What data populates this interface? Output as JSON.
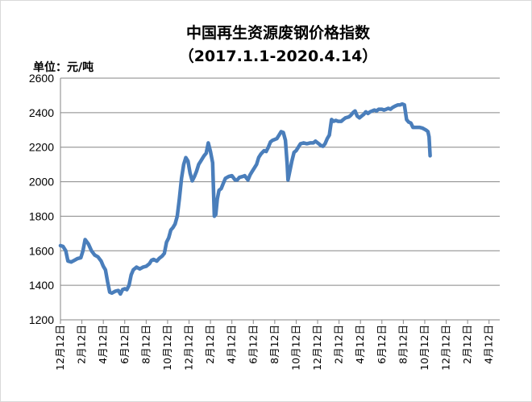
{
  "chart_data": {
    "type": "line",
    "title": "中国再生资源废钢价格指数",
    "subtitle": "（2017.1.1-2020.4.14）",
    "ylabel": "单位：元/吨",
    "xlabel": "",
    "ylim": [
      1200,
      2600
    ],
    "yticks": [
      "2600",
      "2400",
      "2200",
      "2000",
      "1800",
      "1600",
      "1400",
      "1200"
    ],
    "categories": [
      "12月12日",
      "2月12日",
      "4月12日",
      "6月12日",
      "8月12日",
      "10月12日",
      "12月12日",
      "2月12日",
      "4月12日",
      "6月12日",
      "8月12日",
      "10月12日",
      "12月12日",
      "2月12日",
      "4月12日",
      "6月12日",
      "8月12日",
      "10月12日",
      "12月12日",
      "2月12日",
      "4月12日"
    ],
    "grid": true,
    "legend": "none",
    "color": "#4a7ebb",
    "series": [
      {
        "values": [
          [
            0,
            1630
          ],
          [
            0.12,
            1625
          ],
          [
            0.25,
            1600
          ],
          [
            0.35,
            1540
          ],
          [
            0.5,
            1535
          ],
          [
            0.65,
            1545
          ],
          [
            0.8,
            1555
          ],
          [
            0.95,
            1560
          ],
          [
            1.05,
            1600
          ],
          [
            1.15,
            1665
          ],
          [
            1.3,
            1640
          ],
          [
            1.45,
            1600
          ],
          [
            1.6,
            1575
          ],
          [
            1.75,
            1565
          ],
          [
            1.9,
            1540
          ],
          [
            2.0,
            1510
          ],
          [
            2.1,
            1490
          ],
          [
            2.2,
            1420
          ],
          [
            2.3,
            1360
          ],
          [
            2.4,
            1355
          ],
          [
            2.55,
            1365
          ],
          [
            2.7,
            1370
          ],
          [
            2.8,
            1350
          ],
          [
            2.9,
            1375
          ],
          [
            3.0,
            1380
          ],
          [
            3.1,
            1375
          ],
          [
            3.2,
            1400
          ],
          [
            3.3,
            1460
          ],
          [
            3.4,
            1490
          ],
          [
            3.55,
            1505
          ],
          [
            3.7,
            1495
          ],
          [
            3.85,
            1505
          ],
          [
            4.0,
            1510
          ],
          [
            4.15,
            1525
          ],
          [
            4.25,
            1545
          ],
          [
            4.35,
            1550
          ],
          [
            4.5,
            1540
          ],
          [
            4.6,
            1555
          ],
          [
            4.75,
            1570
          ],
          [
            4.85,
            1585
          ],
          [
            4.95,
            1650
          ],
          [
            5.05,
            1675
          ],
          [
            5.15,
            1720
          ],
          [
            5.25,
            1735
          ],
          [
            5.35,
            1755
          ],
          [
            5.45,
            1800
          ],
          [
            5.55,
            1900
          ],
          [
            5.65,
            2020
          ],
          [
            5.75,
            2100
          ],
          [
            5.85,
            2140
          ],
          [
            5.95,
            2120
          ],
          [
            6.05,
            2050
          ],
          [
            6.15,
            2005
          ],
          [
            6.25,
            2030
          ],
          [
            6.35,
            2060
          ],
          [
            6.45,
            2100
          ],
          [
            6.55,
            2120
          ],
          [
            6.7,
            2150
          ],
          [
            6.8,
            2165
          ],
          [
            6.9,
            2225
          ],
          [
            7.0,
            2175
          ],
          [
            7.1,
            2110
          ],
          [
            7.18,
            1800
          ],
          [
            7.25,
            1810
          ],
          [
            7.32,
            1900
          ],
          [
            7.4,
            1950
          ],
          [
            7.5,
            1960
          ],
          [
            7.6,
            1990
          ],
          [
            7.7,
            2020
          ],
          [
            7.85,
            2030
          ],
          [
            8.0,
            2035
          ],
          [
            8.15,
            2010
          ],
          [
            8.25,
            2010
          ],
          [
            8.35,
            2025
          ],
          [
            8.5,
            2030
          ],
          [
            8.6,
            2035
          ],
          [
            8.75,
            2010
          ],
          [
            8.85,
            2040
          ],
          [
            8.95,
            2060
          ],
          [
            9.05,
            2080
          ],
          [
            9.15,
            2100
          ],
          [
            9.25,
            2140
          ],
          [
            9.35,
            2160
          ],
          [
            9.5,
            2180
          ],
          [
            9.6,
            2175
          ],
          [
            9.7,
            2200
          ],
          [
            9.8,
            2230
          ],
          [
            9.9,
            2240
          ],
          [
            10.0,
            2245
          ],
          [
            10.1,
            2250
          ],
          [
            10.2,
            2270
          ],
          [
            10.3,
            2290
          ],
          [
            10.4,
            2285
          ],
          [
            10.5,
            2240
          ],
          [
            10.58,
            2100
          ],
          [
            10.62,
            2010
          ],
          [
            10.7,
            2060
          ],
          [
            10.8,
            2120
          ],
          [
            10.9,
            2170
          ],
          [
            11.0,
            2180
          ],
          [
            11.1,
            2200
          ],
          [
            11.2,
            2220
          ],
          [
            11.35,
            2225
          ],
          [
            11.5,
            2220
          ],
          [
            11.65,
            2225
          ],
          [
            11.8,
            2225
          ],
          [
            11.9,
            2235
          ],
          [
            12.05,
            2220
          ],
          [
            12.15,
            2210
          ],
          [
            12.25,
            2205
          ],
          [
            12.35,
            2220
          ],
          [
            12.45,
            2250
          ],
          [
            12.55,
            2270
          ],
          [
            12.65,
            2360
          ],
          [
            12.75,
            2350
          ],
          [
            12.85,
            2355
          ],
          [
            12.95,
            2350
          ],
          [
            13.1,
            2350
          ],
          [
            13.2,
            2360
          ],
          [
            13.3,
            2370
          ],
          [
            13.45,
            2375
          ],
          [
            13.55,
            2385
          ],
          [
            13.65,
            2400
          ],
          [
            13.75,
            2410
          ],
          [
            13.85,
            2380
          ],
          [
            13.95,
            2370
          ],
          [
            14.05,
            2380
          ],
          [
            14.15,
            2390
          ],
          [
            14.25,
            2405
          ],
          [
            14.35,
            2395
          ],
          [
            14.45,
            2405
          ],
          [
            14.55,
            2410
          ],
          [
            14.65,
            2415
          ],
          [
            14.75,
            2410
          ],
          [
            14.85,
            2420
          ],
          [
            15.0,
            2420
          ],
          [
            15.1,
            2415
          ],
          [
            15.2,
            2420
          ],
          [
            15.3,
            2425
          ],
          [
            15.4,
            2420
          ],
          [
            15.5,
            2430
          ],
          [
            15.65,
            2440
          ],
          [
            15.75,
            2445
          ],
          [
            15.85,
            2445
          ],
          [
            15.95,
            2450
          ],
          [
            16.05,
            2445
          ],
          [
            16.15,
            2360
          ],
          [
            16.25,
            2345
          ],
          [
            16.35,
            2340
          ],
          [
            16.45,
            2315
          ],
          [
            16.6,
            2315
          ],
          [
            16.75,
            2315
          ],
          [
            16.9,
            2310
          ],
          [
            17.05,
            2300
          ],
          [
            17.15,
            2290
          ],
          [
            17.2,
            2260
          ],
          [
            17.25,
            2150
          ]
        ]
      }
    ]
  }
}
